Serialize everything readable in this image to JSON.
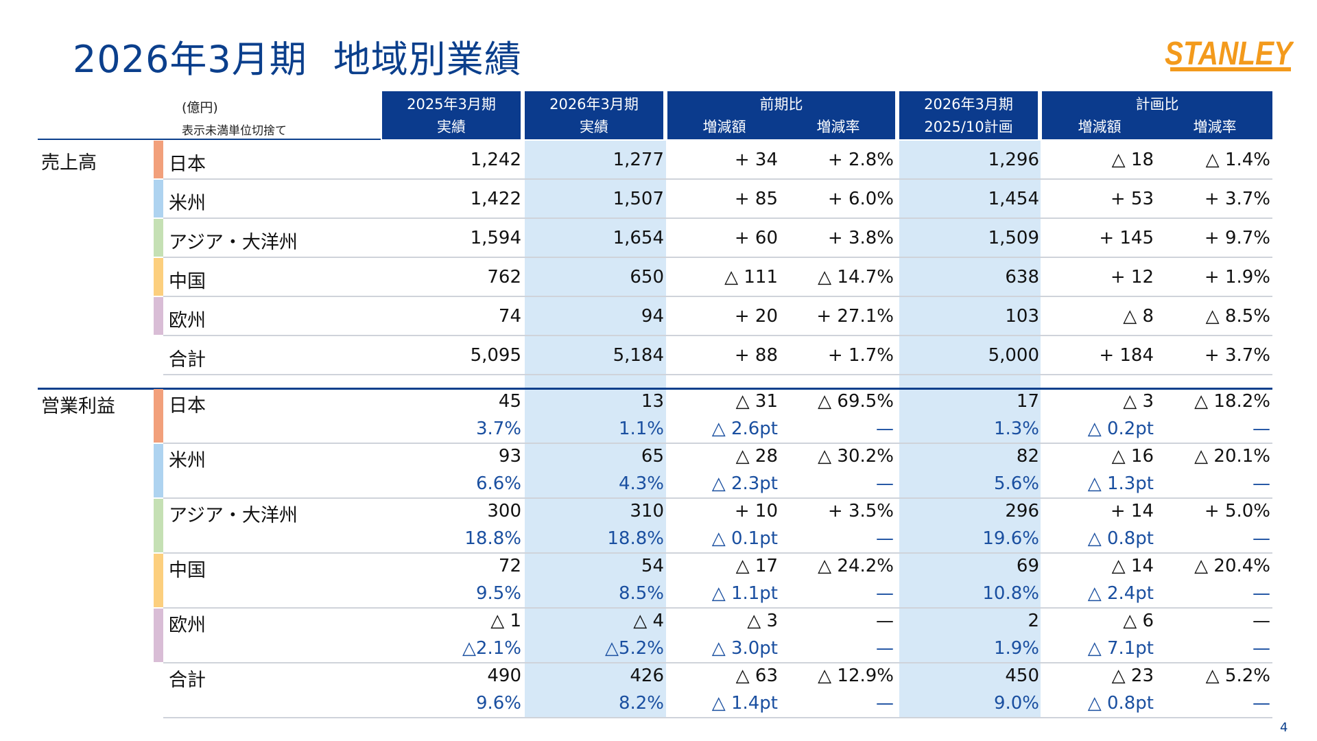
{
  "page": {
    "title_part1": "2026年3月期",
    "title_part2": "地域別業績",
    "page_number": "4",
    "unit_line1": "(億円)",
    "unit_line2": "表示未満単位切捨て"
  },
  "logo": {
    "text": "STANLEY",
    "color": "#f39a1c"
  },
  "colors": {
    "header_bg": "#0b3b8d",
    "highlight_column": "#d6e8f7",
    "margin_text": "#1a4fa0",
    "bar_japan": "#f2a07b",
    "bar_americas": "#aed3f0",
    "bar_asia": "#c5e0b4",
    "bar_china": "#fccf7e",
    "bar_europe": "#d9bdd6"
  },
  "headers": [
    {
      "line1": "2025年3月期",
      "line2": "実績"
    },
    {
      "line1": "2026年3月期",
      "line2": "実績"
    },
    {
      "line1": "前期比",
      "sub": [
        "増減額",
        "増減率"
      ]
    },
    {
      "line1": "2026年3月期",
      "line2": "2025/10計画"
    },
    {
      "line1": "計画比",
      "sub": [
        "増減額",
        "増減率"
      ]
    }
  ],
  "sales": {
    "label": "売上高",
    "rows": [
      {
        "region": "日本",
        "v": [
          "1,242",
          "1,277",
          "+ 34",
          "+ 2.8%",
          "1,296",
          "△ 18",
          "△ 1.4%"
        ]
      },
      {
        "region": "米州",
        "v": [
          "1,422",
          "1,507",
          "+ 85",
          "+ 6.0%",
          "1,454",
          "+ 53",
          "+ 3.7%"
        ]
      },
      {
        "region": "アジア・大洋州",
        "v": [
          "1,594",
          "1,654",
          "+ 60",
          "+ 3.8%",
          "1,509",
          "+ 145",
          "+ 9.7%"
        ]
      },
      {
        "region": "中国",
        "v": [
          "762",
          "650",
          "△ 111",
          "△ 14.7%",
          "638",
          "+ 12",
          "+ 1.9%"
        ]
      },
      {
        "region": "欧州",
        "v": [
          "74",
          "94",
          "+ 20",
          "+ 27.1%",
          "103",
          "△ 8",
          "△ 8.5%"
        ]
      },
      {
        "region": "合計",
        "v": [
          "5,095",
          "5,184",
          "+ 88",
          "+ 1.7%",
          "5,000",
          "+ 184",
          "+ 3.7%"
        ]
      }
    ]
  },
  "op": {
    "label": "営業利益",
    "rows": [
      {
        "region": "日本",
        "v": [
          "45",
          "13",
          "△ 31",
          "△ 69.5%",
          "17",
          "△ 3",
          "△ 18.2%"
        ],
        "m": [
          "3.7%",
          "1.1%",
          "△ 2.6pt",
          "—",
          "1.3%",
          "△ 0.2pt",
          "—"
        ]
      },
      {
        "region": "米州",
        "v": [
          "93",
          "65",
          "△ 28",
          "△ 30.2%",
          "82",
          "△ 16",
          "△ 20.1%"
        ],
        "m": [
          "6.6%",
          "4.3%",
          "△ 2.3pt",
          "—",
          "5.6%",
          "△ 1.3pt",
          "—"
        ]
      },
      {
        "region": "アジア・大洋州",
        "v": [
          "300",
          "310",
          "+ 10",
          "+ 3.5%",
          "296",
          "+ 14",
          "+ 5.0%"
        ],
        "m": [
          "18.8%",
          "18.8%",
          "△ 0.1pt",
          "—",
          "19.6%",
          "△ 0.8pt",
          "—"
        ]
      },
      {
        "region": "中国",
        "v": [
          "72",
          "54",
          "△ 17",
          "△ 24.2%",
          "69",
          "△ 14",
          "△ 20.4%"
        ],
        "m": [
          "9.5%",
          "8.5%",
          "△ 1.1pt",
          "—",
          "10.8%",
          "△ 2.4pt",
          "—"
        ]
      },
      {
        "region": "欧州",
        "v": [
          "△ 1",
          "△ 4",
          "△ 3",
          "—",
          "2",
          "△ 6",
          "—"
        ],
        "m": [
          "△2.1%",
          "△5.2%",
          "△ 3.0pt",
          "—",
          "1.9%",
          "△ 7.1pt",
          "—"
        ]
      },
      {
        "region": "合計",
        "v": [
          "490",
          "426",
          "△ 63",
          "△ 12.9%",
          "450",
          "△ 23",
          "△ 5.2%"
        ],
        "m": [
          "9.6%",
          "8.2%",
          "△ 1.4pt",
          "—",
          "9.0%",
          "△ 0.8pt",
          "—"
        ]
      }
    ]
  }
}
